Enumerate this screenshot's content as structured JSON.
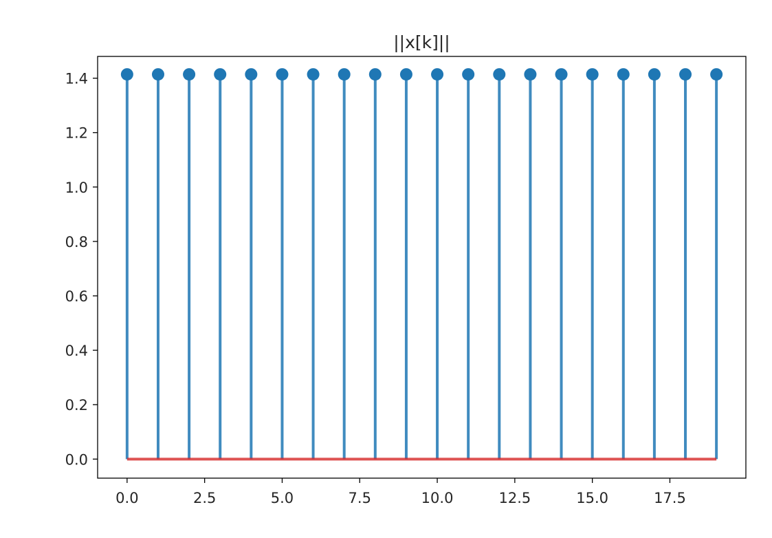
{
  "chart_data": {
    "type": "stem",
    "title": "||x[k]||",
    "xlabel": "",
    "ylabel": "",
    "x": [
      0,
      1,
      2,
      3,
      4,
      5,
      6,
      7,
      8,
      9,
      10,
      11,
      12,
      13,
      14,
      15,
      16,
      17,
      18,
      19
    ],
    "y": [
      1.414,
      1.414,
      1.414,
      1.414,
      1.414,
      1.414,
      1.414,
      1.414,
      1.414,
      1.414,
      1.414,
      1.414,
      1.414,
      1.414,
      1.414,
      1.414,
      1.414,
      1.414,
      1.414,
      1.414
    ],
    "baseline": 0.0,
    "xlim": [
      -0.95,
      19.95
    ],
    "ylim": [
      -0.07,
      1.48
    ],
    "xticks": [
      0,
      2.5,
      5,
      7.5,
      10,
      12.5,
      15,
      17.5
    ],
    "xtick_labels": [
      "0.0",
      "2.5",
      "5.0",
      "7.5",
      "10.0",
      "12.5",
      "15.0",
      "17.5"
    ],
    "yticks": [
      0,
      0.2,
      0.4,
      0.6,
      0.8,
      1.0,
      1.2,
      1.4
    ],
    "ytick_labels": [
      "0.0",
      "0.2",
      "0.4",
      "0.6",
      "0.8",
      "1.0",
      "1.2",
      "1.4"
    ],
    "grid": false,
    "colors": {
      "stem": "#1f77b4",
      "marker": "#1f77b4",
      "baseline": "#d62728",
      "axes": "#000000",
      "text": "#262626"
    }
  }
}
